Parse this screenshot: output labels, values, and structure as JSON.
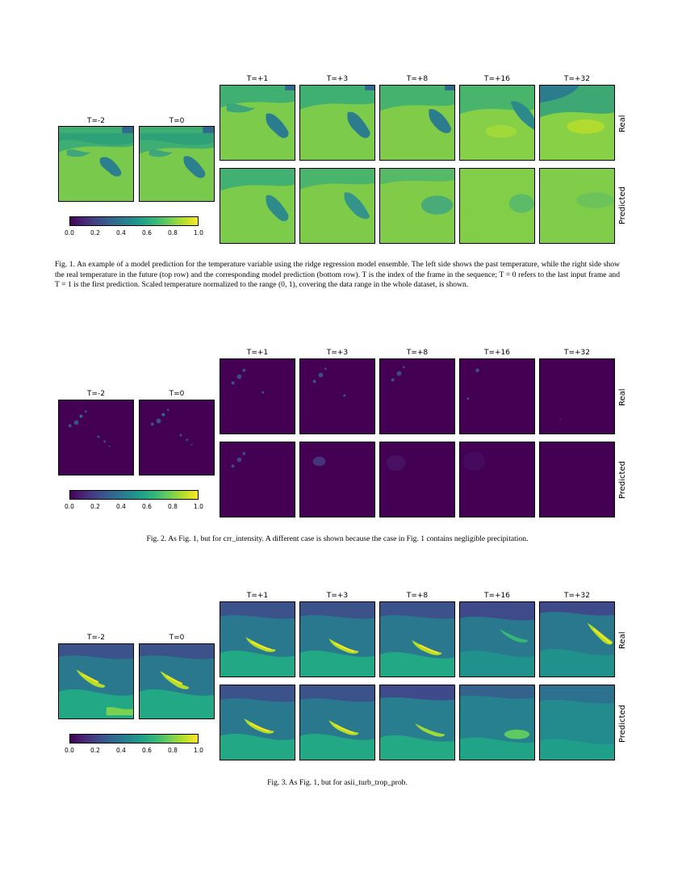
{
  "figures": [
    {
      "past_labels": [
        "T=-2",
        "T=0"
      ],
      "future_labels": [
        "T=+1",
        "T=+3",
        "T=+8",
        "T=+16",
        "T=+32"
      ],
      "row_labels": [
        "Real",
        "Predicted"
      ],
      "colorbar_ticks": [
        "0.0",
        "0.2",
        "0.4",
        "0.6",
        "0.8",
        "1.0"
      ],
      "caption": "Fig. 1.  An example of a model prediction for the temperature variable using the ridge regression model ensemble. The left side shows the past temperature, while the right side show the real temperature in the future (top row) and the corresponding model prediction (bottom row). T is the index of the frame in the sequence; T = 0 refers to the last input frame and T = 1 is the first prediction. Scaled temperature normalized to the range (0, 1), covering the data range in the whole dataset, is shown."
    },
    {
      "past_labels": [
        "T=-2",
        "T=0"
      ],
      "future_labels": [
        "T=+1",
        "T=+3",
        "T=+8",
        "T=+16",
        "T=+32"
      ],
      "row_labels": [
        "Real",
        "Predicted"
      ],
      "colorbar_ticks": [
        "0.0",
        "0.2",
        "0.4",
        "0.6",
        "0.8",
        "1.0"
      ],
      "caption": "Fig. 2.  As Fig. 1, but for crr_intensity. A different case is shown because the case in Fig. 1 contains negligible precipitation."
    },
    {
      "past_labels": [
        "T=-2",
        "T=0"
      ],
      "future_labels": [
        "T=+1",
        "T=+3",
        "T=+8",
        "T=+16",
        "T=+32"
      ],
      "row_labels": [
        "Real",
        "Predicted"
      ],
      "colorbar_ticks": [
        "0.0",
        "0.2",
        "0.4",
        "0.6",
        "0.8",
        "1.0"
      ],
      "caption": "Fig. 3.  As Fig. 1, but for asii_turb_trop_prob."
    }
  ],
  "colors": {
    "viridis": [
      "#440154",
      "#482878",
      "#3e4a89",
      "#31688e",
      "#26828e",
      "#1f9e89",
      "#35b779",
      "#6ece58",
      "#b5de2b",
      "#fde725"
    ]
  }
}
